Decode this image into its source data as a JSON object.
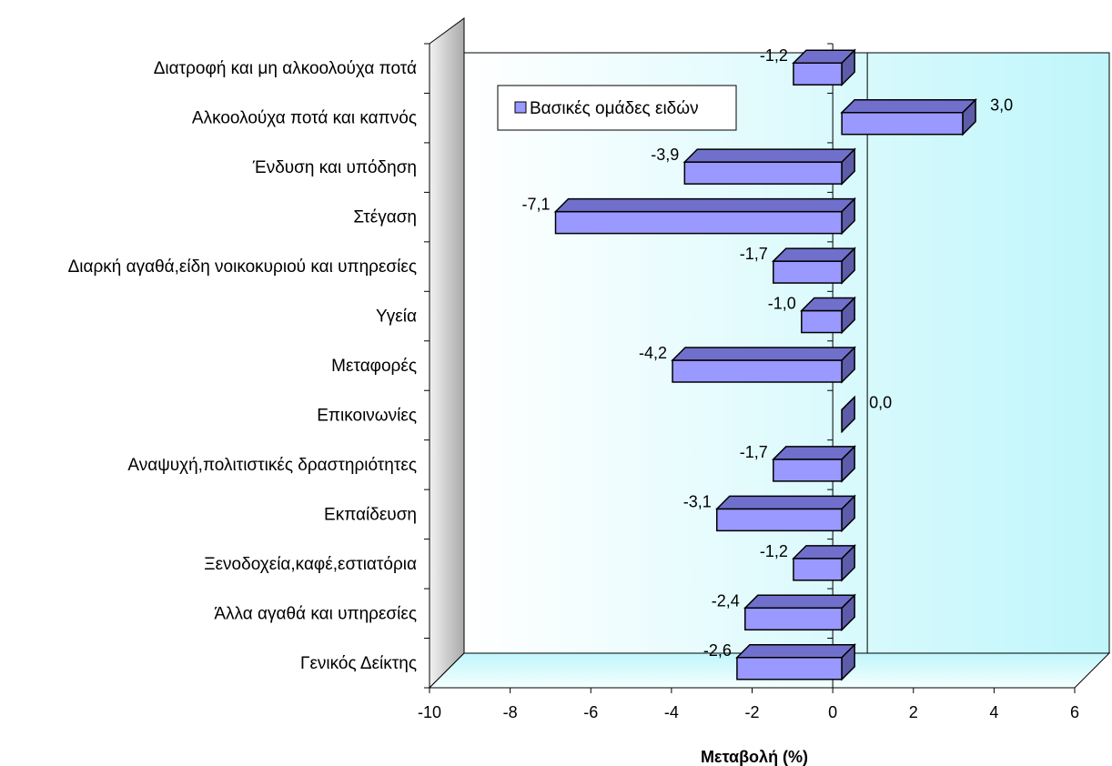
{
  "chart_data": {
    "type": "bar",
    "orientation": "horizontal",
    "three_d": true,
    "categories": [
      "Διατροφή και μη αλκοολούχα ποτά",
      "Αλκοολούχα ποτά και καπνός",
      "Ένδυση και υπόδηση",
      "Στέγαση",
      "Διαρκή αγαθά,είδη νοικοκυριού και υπηρεσίες",
      "Υγεία",
      "Μεταφορές",
      "Επικοινωνίες",
      "Αναψυχή,πολιτιστικές δραστηριότητες",
      "Εκπαίδευση",
      "Ξενοδοχεία,καφέ,εστιατόρια",
      "Άλλα αγαθά και υπηρεσίες",
      "Γενικός Δείκτης"
    ],
    "series": [
      {
        "name": "Βασικές ομάδες ειδών",
        "values": [
          -1.2,
          3.0,
          -3.9,
          -7.1,
          -1.7,
          -1.0,
          -4.2,
          0.0,
          -1.7,
          -3.1,
          -1.2,
          -2.4,
          -2.6
        ],
        "data_labels": [
          "-1,2",
          "3,0",
          "-3,9",
          "-7,1",
          "-1,7",
          "-1,0",
          "-4,2",
          "0,0",
          "-1,7",
          "-3,1",
          "-1,2",
          "-2,4",
          "-2,6"
        ]
      }
    ],
    "xlabel": "Μεταβολή (%)",
    "xlim": [
      -10,
      6
    ],
    "xticks": [
      -10,
      -8,
      -6,
      -4,
      -2,
      0,
      2,
      4,
      6
    ],
    "xtick_labels": [
      "-10",
      "-8",
      "-6",
      "-4",
      "-2",
      "0",
      "2",
      "4",
      "6"
    ],
    "legend_position": "top-left",
    "grid": false,
    "colors": {
      "bar_front": "#9999ff",
      "bar_top": "#7070cc",
      "bar_side": "#5c5ca8",
      "wall": "#ccffff",
      "floor": "#ccffff",
      "side_wall": "#b8b8b8"
    }
  }
}
